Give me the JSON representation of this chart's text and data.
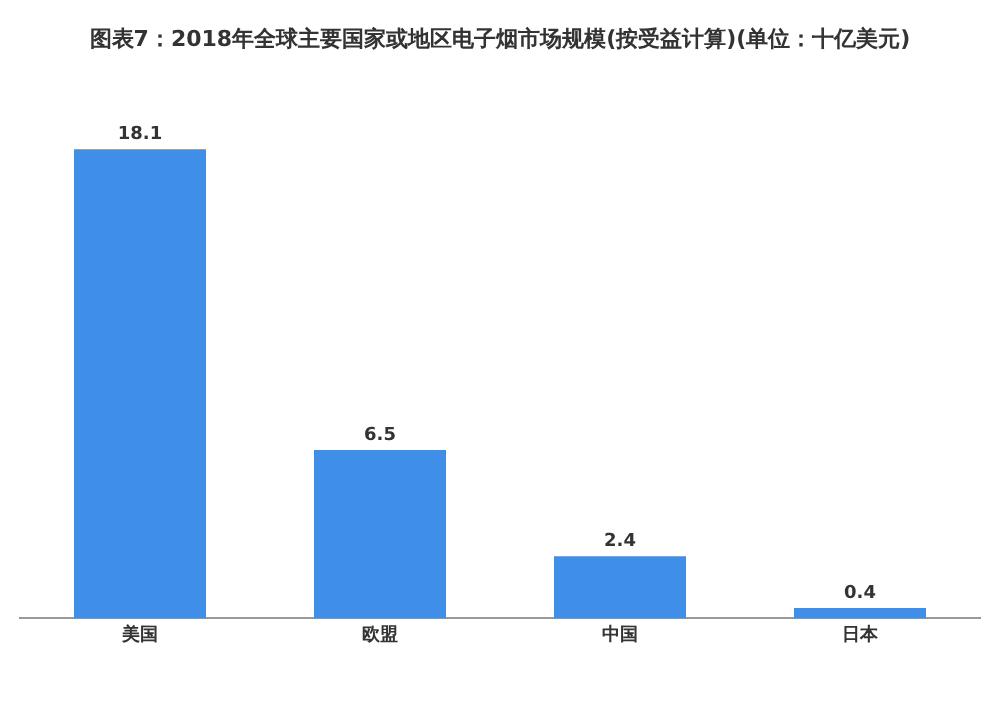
{
  "chart_data": {
    "type": "bar",
    "title": "图表7：2018年全球主要国家或地区电子烟市场规模(按受益计算)(单位：十亿美元)",
    "categories": [
      "美国",
      "欧盟",
      "中国",
      "日本"
    ],
    "values": [
      18.1,
      6.5,
      2.4,
      0.4
    ],
    "color": "#3f8ee8",
    "data_labels": true,
    "grid": false,
    "legend": false
  }
}
